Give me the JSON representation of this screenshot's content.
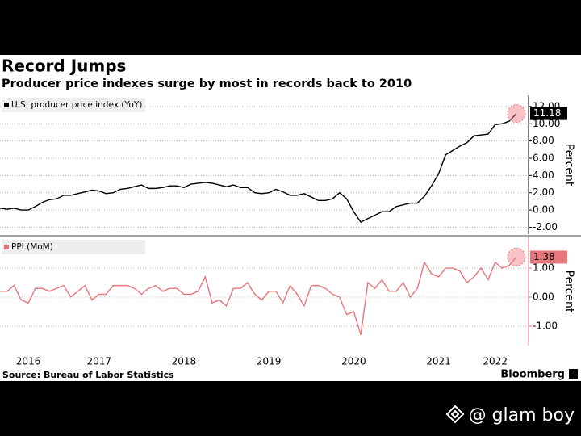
{
  "chart_data": [
    {
      "type": "line",
      "title": "Record Jumps",
      "subtitle": "Producer price indexes surge by most in records back to 2010",
      "ylabel": "Percent",
      "series": [
        {
          "name": "U.S. producer price index (YoY)",
          "color": "#000000",
          "values": [
            0.2,
            0.1,
            0.2,
            0.0,
            0.0,
            0.4,
            0.9,
            1.2,
            1.3,
            1.7,
            1.7,
            1.9,
            2.1,
            2.3,
            2.2,
            1.9,
            2.0,
            2.4,
            2.5,
            2.7,
            2.9,
            2.5,
            2.5,
            2.6,
            2.8,
            2.8,
            2.6,
            3.0,
            3.1,
            3.2,
            3.1,
            2.9,
            2.7,
            2.9,
            2.6,
            2.6,
            2.0,
            1.9,
            2.0,
            2.4,
            2.1,
            1.7,
            1.7,
            1.9,
            1.5,
            1.1,
            1.1,
            1.3,
            2.0,
            1.3,
            -0.2,
            -1.4,
            -1.0,
            -0.6,
            -0.2,
            -0.2,
            0.4,
            0.6,
            0.8,
            0.8,
            1.6,
            2.8,
            4.2,
            6.4,
            6.9,
            7.4,
            7.8,
            8.6,
            8.7,
            8.8,
            9.9,
            10.0,
            10.3,
            11.18
          ]
        }
      ],
      "ylim": [
        -2.8,
        13.3
      ],
      "yticks": [
        {
          "value": -2,
          "label": "-2.00"
        },
        {
          "value": 0,
          "label": "0.00"
        },
        {
          "value": 2,
          "label": "2.00"
        },
        {
          "value": 4,
          "label": "4.00"
        },
        {
          "value": 6,
          "label": "6.00"
        },
        {
          "value": 8,
          "label": "8.00"
        },
        {
          "value": 10,
          "label": "10.00"
        },
        {
          "value": 12,
          "label": "12.00"
        }
      ],
      "grid": true
    },
    {
      "type": "line",
      "ylabel": "Percent",
      "categories": [
        null,
        null,
        null,
        null,
        "2016",
        null,
        null,
        null,
        null,
        null,
        null,
        null,
        null,
        null,
        "2017",
        null,
        null,
        null,
        null,
        null,
        null,
        null,
        null,
        null,
        null,
        null,
        "2018",
        null,
        null,
        null,
        null,
        null,
        null,
        null,
        null,
        null,
        null,
        null,
        "2019",
        null,
        null,
        null,
        null,
        null,
        null,
        null,
        null,
        null,
        null,
        null,
        "2020",
        null,
        null,
        null,
        null,
        null,
        null,
        null,
        null,
        null,
        null,
        null,
        "2021",
        null,
        null,
        null,
        null,
        null,
        null,
        null,
        "2022",
        null,
        null,
        null
      ],
      "series": [
        {
          "name": "PPI (MoM)",
          "color": "#e8767a",
          "values": [
            0.2,
            0.2,
            0.4,
            -0.1,
            -0.2,
            0.3,
            0.3,
            0.2,
            0.3,
            0.4,
            0.0,
            0.2,
            0.4,
            -0.1,
            0.1,
            0.1,
            0.4,
            0.4,
            0.4,
            0.3,
            0.1,
            0.3,
            0.4,
            0.2,
            0.3,
            0.3,
            0.1,
            0.1,
            0.2,
            0.7,
            -0.2,
            -0.1,
            -0.3,
            0.3,
            0.3,
            0.5,
            0.1,
            -0.1,
            0.2,
            0.2,
            -0.2,
            0.4,
            0.1,
            -0.3,
            0.4,
            0.4,
            0.3,
            0.1,
            0.0,
            -0.6,
            -0.5,
            -1.3,
            0.5,
            0.3,
            0.6,
            0.2,
            0.2,
            0.5,
            0.0,
            0.3,
            1.2,
            0.8,
            0.7,
            1.0,
            1.0,
            0.9,
            0.5,
            0.7,
            1.0,
            0.6,
            1.2,
            1.0,
            1.1,
            1.38
          ]
        }
      ],
      "ylim": [
        -1.67,
        2.06
      ],
      "yticks": [
        {
          "value": -1,
          "label": "-1.00"
        },
        {
          "value": 0,
          "label": "0.00"
        },
        {
          "value": 1,
          "label": "1.00"
        }
      ],
      "grid": true
    }
  ],
  "source": "Source: Bureau of Labor Statistics",
  "logo": "Bloomberg",
  "watermark": "@ glam boy"
}
